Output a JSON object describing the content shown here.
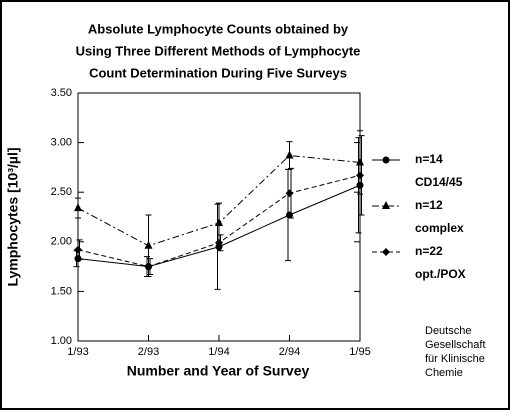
{
  "chart_data": {
    "type": "line",
    "title": [
      "Absolute Lymphocyte Counts obtained by",
      "Using Three Different Methods of Lymphocyte",
      "Count Determination During Five Surveys"
    ],
    "x_label": "Number and Year of Survey",
    "y_label": "Lymphocytes [10³/µl]",
    "categories": [
      "1/93",
      "2/93",
      "1/94",
      "2/94",
      "1/95"
    ],
    "ylim": [
      1.0,
      3.5
    ],
    "yticks": [
      {
        "value": 1.0,
        "label": "1.00"
      },
      {
        "value": 1.5,
        "label": "1.50"
      },
      {
        "value": 2.0,
        "label": "2.00"
      },
      {
        "value": 2.5,
        "label": "2.50"
      },
      {
        "value": 3.0,
        "label": "3.00"
      },
      {
        "value": 3.5,
        "label": "3.50"
      }
    ],
    "grid": false,
    "series": [
      {
        "name": "n=14",
        "label": "CD14/45",
        "color": "#000000",
        "marker": "circle",
        "line_style": "solid",
        "values": [
          1.83,
          1.75,
          1.95,
          2.27,
          2.57
        ],
        "errors": [
          0.08,
          0.1,
          0.43,
          0.46,
          0.48
        ]
      },
      {
        "name": "n=12",
        "label": "complex",
        "color": "#000000",
        "marker": "triangle",
        "line_style": "dashdot",
        "values": [
          2.34,
          1.96,
          2.19,
          2.87,
          2.8
        ],
        "errors": [
          0.1,
          0.31,
          0.2,
          0.14,
          0.32
        ]
      },
      {
        "name": "n=22",
        "label": "opt./POX",
        "color": "#000000",
        "marker": "diamond",
        "line_style": "dashed",
        "values": [
          1.92,
          1.75,
          1.99,
          2.49,
          2.67
        ],
        "errors": [
          0.1,
          0.08,
          0.08,
          0.25,
          0.4
        ]
      }
    ],
    "annotation": [
      "Deutsche",
      "Gesellschaft",
      "für Klinische",
      "Chemie"
    ]
  }
}
